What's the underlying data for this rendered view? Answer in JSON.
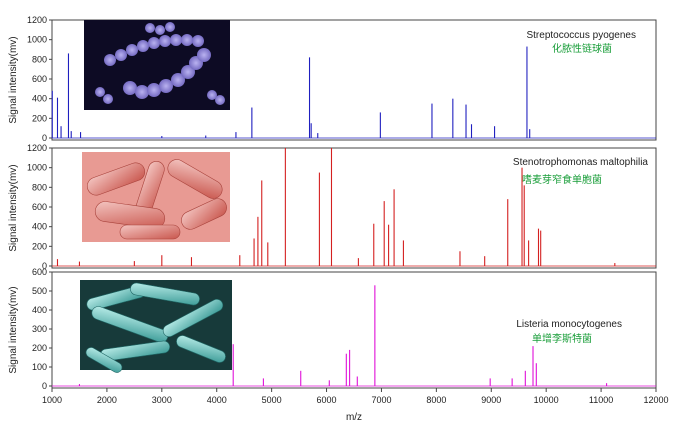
{
  "chart_data": [
    {
      "type": "line",
      "organism_en": "Streptococcus pyogenes",
      "organism_cn": "化脓性链球菌",
      "ylabel": "Signal intensity(mv)",
      "ylim": [
        0,
        1200
      ],
      "yticks": [
        0,
        200,
        400,
        600,
        800,
        1000,
        1200
      ],
      "color": "#1f1fbf",
      "photo": "bacteria-micrograph-purple",
      "peaks": [
        [
          1005,
          480
        ],
        [
          1100,
          410
        ],
        [
          1165,
          120
        ],
        [
          1300,
          860
        ],
        [
          1350,
          70
        ],
        [
          1520,
          60
        ],
        [
          3000,
          20
        ],
        [
          3800,
          25
        ],
        [
          4350,
          60
        ],
        [
          4640,
          310
        ],
        [
          5690,
          820
        ],
        [
          5720,
          150
        ],
        [
          5840,
          50
        ],
        [
          6980,
          260
        ],
        [
          7920,
          350
        ],
        [
          8300,
          400
        ],
        [
          8540,
          340
        ],
        [
          8640,
          140
        ],
        [
          9060,
          120
        ],
        [
          9650,
          930
        ],
        [
          9700,
          90
        ]
      ]
    },
    {
      "type": "line",
      "organism_en": "Stenotrophomonas maltophilia",
      "organism_cn": "嗜麦芽窄食单胞菌",
      "ylabel": "Signal intensity(mv)",
      "ylim": [
        0,
        1200
      ],
      "yticks": [
        0,
        200,
        400,
        600,
        800,
        1000,
        1200
      ],
      "color": "#d42020",
      "photo": "bacteria-micrograph-red",
      "peaks": [
        [
          1100,
          70
        ],
        [
          1500,
          45
        ],
        [
          2500,
          50
        ],
        [
          3000,
          110
        ],
        [
          3540,
          90
        ],
        [
          4420,
          110
        ],
        [
          4680,
          280
        ],
        [
          4750,
          500
        ],
        [
          4820,
          870
        ],
        [
          4930,
          240
        ],
        [
          5250,
          1200
        ],
        [
          5870,
          950
        ],
        [
          6090,
          1200
        ],
        [
          6580,
          80
        ],
        [
          6860,
          430
        ],
        [
          7050,
          660
        ],
        [
          7130,
          420
        ],
        [
          7230,
          780
        ],
        [
          7400,
          260
        ],
        [
          8430,
          150
        ],
        [
          8880,
          100
        ],
        [
          9300,
          680
        ],
        [
          9560,
          1000
        ],
        [
          9600,
          820
        ],
        [
          9680,
          260
        ],
        [
          9860,
          380
        ],
        [
          9900,
          360
        ],
        [
          11250,
          30
        ]
      ]
    },
    {
      "type": "line",
      "organism_en": "Listeria monocytogenes",
      "organism_cn": "单增李斯特菌",
      "ylabel": "Signal intensity(mv)",
      "ylim": [
        0,
        600
      ],
      "yticks": [
        0,
        100,
        200,
        300,
        400,
        500,
        600
      ],
      "color": "#e010d8",
      "photo": "bacteria-micrograph-teal",
      "peaks": [
        [
          1500,
          10
        ],
        [
          4300,
          220
        ],
        [
          4850,
          40
        ],
        [
          5530,
          80
        ],
        [
          6050,
          30
        ],
        [
          6360,
          170
        ],
        [
          6420,
          190
        ],
        [
          6560,
          50
        ],
        [
          6880,
          530
        ],
        [
          8980,
          40
        ],
        [
          9380,
          40
        ],
        [
          9620,
          80
        ],
        [
          9760,
          210
        ],
        [
          9820,
          120
        ],
        [
          11100,
          15
        ]
      ]
    }
  ],
  "x_axis": {
    "label": "m/z",
    "xlim": [
      1000,
      12000
    ],
    "ticks": [
      "1000",
      "2000",
      "3000",
      "4000",
      "5000",
      "6000",
      "7000",
      "8000",
      "9000",
      "10000",
      "11000",
      "12000"
    ]
  }
}
